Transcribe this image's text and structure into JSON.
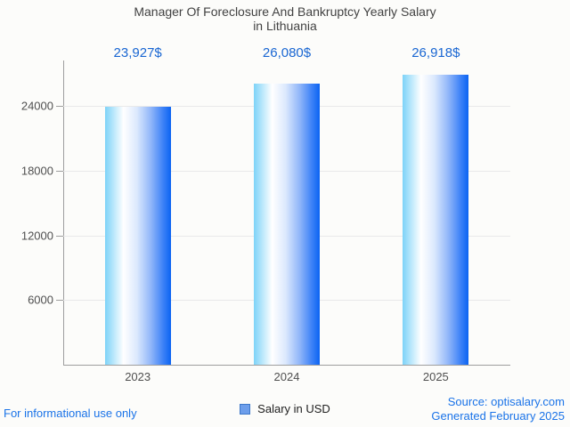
{
  "title": {
    "line1": "Manager Of Foreclosure And Bankruptcy Yearly Salary",
    "line2": "in Lithuania"
  },
  "chart_data": {
    "type": "bar",
    "categories": [
      "2023",
      "2024",
      "2025"
    ],
    "series": [
      {
        "name": "Salary in USD",
        "values": [
          23927,
          26080,
          26918
        ]
      }
    ],
    "value_labels": [
      "23,927$",
      "26,080$",
      "26,918$"
    ],
    "yticks": [
      6000,
      12000,
      18000,
      24000
    ],
    "ylim": [
      0,
      28000
    ],
    "xlabel": "",
    "ylabel": "",
    "grid": true,
    "legend_position": "bottom"
  },
  "legend": {
    "label": "Salary in USD"
  },
  "footer": {
    "left": "For informational use only",
    "source": "Source: optisalary.com",
    "generated": "Generated February 2025"
  },
  "colors": {
    "background": "#fcfcfa",
    "title_text": "#424242",
    "axis_text": "#4f4f4f",
    "value_label_text": "#1966d2",
    "footer_link_text": "#1a73e8",
    "bar_gradient_left": "#7dd3f8",
    "bar_gradient_mid": "#ffffff",
    "bar_gradient_right": "#0b63f2",
    "gridline": "#e9e9e9",
    "axis_line": "#9e9e9e",
    "legend_swatch_fill": "#6d9eeb",
    "legend_swatch_border": "#3d78c9"
  }
}
